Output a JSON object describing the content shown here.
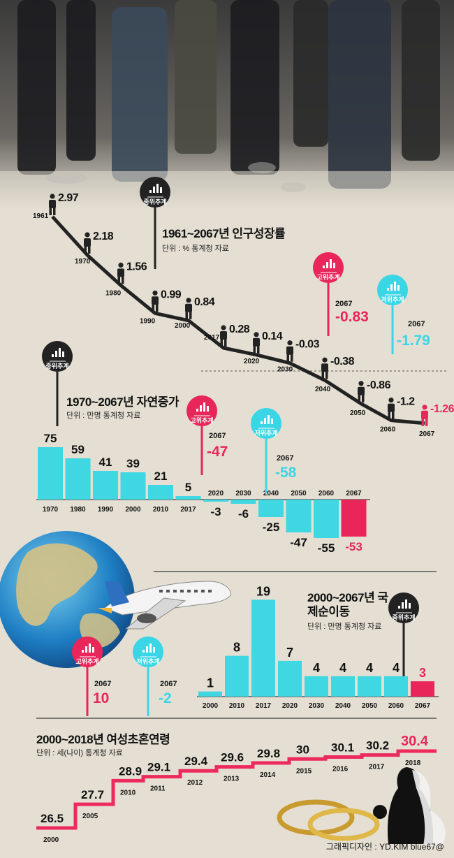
{
  "colors": {
    "mid": "#222222",
    "high": "#e8265a",
    "low": "#3bd6e6",
    "bar": "#3ed7e2",
    "bar_neg_last": "#e8265a",
    "stair": "#ec2b5c"
  },
  "badges": {
    "mid": "중위추계",
    "high": "고위추계",
    "low": "저위추계"
  },
  "icons": {
    "badge": "bar-chart-icon",
    "person": "person-icon",
    "rings": "wedding-rings-icon",
    "bride": "bride-silhouette-icon",
    "globe": "globe-icon",
    "airplane": "airplane-icon"
  },
  "credit": "그래픽디자인 : YD.KIM   blue67@",
  "chart_data": [
    {
      "type": "line",
      "title": "1961~2067년 인구성장률",
      "unit": "단위 : %    통계청 자료",
      "badge": "중위추계",
      "x": [
        "1961",
        "1970",
        "1980",
        "1990",
        "2000",
        "2017",
        "2020",
        "2030",
        "2040",
        "2050",
        "2060",
        "2067"
      ],
      "y": [
        2.97,
        2.18,
        1.56,
        0.99,
        0.84,
        0.28,
        0.14,
        -0.03,
        -0.38,
        -0.86,
        -1.2,
        -1.26
      ],
      "value_labels": [
        "2.97",
        "2.18",
        "1.56",
        "0.99",
        "0.84",
        "0.28",
        "0.14",
        "-0.03",
        "-0.38",
        "-0.86",
        "-1.2",
        "-1.26"
      ],
      "scenarios": [
        {
          "name": "고위추계",
          "year": "2067",
          "value": -0.83,
          "label": "-0.83"
        },
        {
          "name": "저위추계",
          "year": "2067",
          "value": -1.79,
          "label": "-1.79"
        }
      ]
    },
    {
      "type": "bar",
      "title": "1970~2067년 자연증가",
      "unit": "단위 : 만명    통계청 자료",
      "badge": "중위추계",
      "categories": [
        "1970",
        "1980",
        "1990",
        "2000",
        "2010",
        "2017",
        "2020",
        "2030",
        "2040",
        "2050",
        "2060",
        "2067"
      ],
      "values": [
        75,
        59,
        41,
        39,
        21,
        5,
        -3,
        -6,
        -25,
        -47,
        -55,
        -53
      ],
      "scenarios": [
        {
          "name": "고위추계",
          "year": "2067",
          "value": -47,
          "label": "-47"
        },
        {
          "name": "저위추계",
          "year": "2067",
          "value": -58,
          "label": "-58"
        }
      ]
    },
    {
      "type": "bar",
      "title": "2000~2067년 국제순이동",
      "unit": "단위 : 만명    통계청 자료",
      "badge": "중위추계",
      "categories": [
        "2000",
        "2010",
        "2017",
        "2020",
        "2030",
        "2040",
        "2050",
        "2060",
        "2067"
      ],
      "values": [
        1,
        8,
        19,
        7,
        4,
        4,
        4,
        4,
        3
      ],
      "scenarios": [
        {
          "name": "고위추계",
          "year": "2067",
          "value": 10,
          "label": "10"
        },
        {
          "name": "저위추계",
          "year": "2067",
          "value": -2,
          "label": "-2"
        }
      ]
    },
    {
      "type": "line",
      "title": "2000~2018년 여성초혼연령",
      "unit": "단위 : 세(나이)    통계청 자료",
      "x": [
        "2000",
        "2005",
        "2010",
        "2011",
        "2012",
        "2013",
        "2014",
        "2015",
        "2016",
        "2017",
        "2018"
      ],
      "y": [
        26.5,
        27.7,
        28.9,
        29.1,
        29.4,
        29.6,
        29.8,
        30,
        30.1,
        30.2,
        30.4
      ],
      "value_labels": [
        "26.5",
        "27.7",
        "28.9",
        "29.1",
        "29.4",
        "29.6",
        "29.8",
        "30",
        "30.1",
        "30.2",
        "30.4"
      ]
    }
  ]
}
